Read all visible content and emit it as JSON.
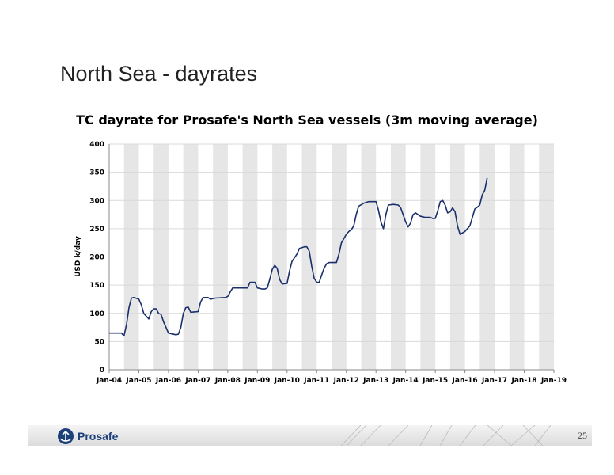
{
  "slide": {
    "title": "North Sea - dayrates",
    "page_number": "25",
    "logo_text": "Prosafe"
  },
  "colors": {
    "line": "#1a2f6b",
    "band": "#e6e6e6",
    "grid": "#d9d9d9",
    "footer_brand": "#1d3f7a"
  },
  "chart_data": {
    "type": "line",
    "title": "TC dayrate for Prosafe's North Sea vessels (3m moving average)",
    "ylabel": "USD k/day",
    "xlabel": "",
    "ylim": [
      0,
      400
    ],
    "yticks": [
      0,
      50,
      100,
      150,
      200,
      250,
      300,
      350,
      400
    ],
    "xlim": [
      "2004-01",
      "2019-01"
    ],
    "xticks": [
      "Jan-04",
      "Jan-05",
      "Jan-06",
      "Jan-07",
      "Jan-08",
      "Jan-09",
      "Jan-10",
      "Jan-11",
      "Jan-12",
      "Jan-13",
      "Jan-14",
      "Jan-15",
      "Jan-16",
      "Jan-17",
      "Jan-18",
      "Jan-19"
    ],
    "grid": "horizontal",
    "shaded_bands": "alternating half-years",
    "series": [
      {
        "points": [
          [
            "2004-01",
            65
          ],
          [
            "2004-06",
            65
          ],
          [
            "2004-07",
            60
          ],
          [
            "2004-08",
            80
          ],
          [
            "2004-09",
            110
          ],
          [
            "2004-10",
            127
          ],
          [
            "2004-11",
            128
          ],
          [
            "2005-01",
            125
          ],
          [
            "2005-02",
            115
          ],
          [
            "2005-03",
            100
          ],
          [
            "2005-05",
            90
          ],
          [
            "2005-06",
            103
          ],
          [
            "2005-07",
            108
          ],
          [
            "2005-08",
            108
          ],
          [
            "2005-09",
            100
          ],
          [
            "2005-10",
            98
          ],
          [
            "2005-11",
            85
          ],
          [
            "2006-01",
            65
          ],
          [
            "2006-04",
            62
          ],
          [
            "2006-05",
            63
          ],
          [
            "2006-06",
            75
          ],
          [
            "2006-07",
            100
          ],
          [
            "2006-08",
            110
          ],
          [
            "2006-09",
            111
          ],
          [
            "2006-10",
            102
          ],
          [
            "2007-01",
            103
          ],
          [
            "2007-02",
            120
          ],
          [
            "2007-03",
            128
          ],
          [
            "2007-05",
            128
          ],
          [
            "2007-06",
            125
          ],
          [
            "2007-08",
            127
          ],
          [
            "2007-12",
            128
          ],
          [
            "2008-01",
            130
          ],
          [
            "2008-02",
            138
          ],
          [
            "2008-03",
            145
          ],
          [
            "2008-06",
            145
          ],
          [
            "2008-09",
            145
          ],
          [
            "2008-10",
            155
          ],
          [
            "2008-12",
            155
          ],
          [
            "2009-01",
            145
          ],
          [
            "2009-03",
            143
          ],
          [
            "2009-04",
            143
          ],
          [
            "2009-05",
            145
          ],
          [
            "2009-06",
            160
          ],
          [
            "2009-07",
            178
          ],
          [
            "2009-08",
            185
          ],
          [
            "2009-09",
            180
          ],
          [
            "2009-10",
            160
          ],
          [
            "2009-11",
            152
          ],
          [
            "2010-01",
            153
          ],
          [
            "2010-02",
            175
          ],
          [
            "2010-03",
            192
          ],
          [
            "2010-05",
            205
          ],
          [
            "2010-06",
            215
          ],
          [
            "2010-08",
            218
          ],
          [
            "2010-09",
            218
          ],
          [
            "2010-10",
            210
          ],
          [
            "2010-11",
            183
          ],
          [
            "2010-12",
            162
          ],
          [
            "2011-01",
            155
          ],
          [
            "2011-02",
            155
          ],
          [
            "2011-03",
            168
          ],
          [
            "2011-04",
            180
          ],
          [
            "2011-05",
            188
          ],
          [
            "2011-06",
            190
          ],
          [
            "2011-09",
            190
          ],
          [
            "2011-10",
            205
          ],
          [
            "2011-11",
            225
          ],
          [
            "2012-01",
            240
          ],
          [
            "2012-02",
            245
          ],
          [
            "2012-03",
            248
          ],
          [
            "2012-04",
            255
          ],
          [
            "2012-05",
            275
          ],
          [
            "2012-06",
            290
          ],
          [
            "2012-08",
            295
          ],
          [
            "2012-10",
            298
          ],
          [
            "2013-01",
            298
          ],
          [
            "2013-02",
            283
          ],
          [
            "2013-03",
            262
          ],
          [
            "2013-04",
            250
          ],
          [
            "2013-05",
            275
          ],
          [
            "2013-06",
            292
          ],
          [
            "2013-08",
            293
          ],
          [
            "2013-10",
            292
          ],
          [
            "2013-11",
            287
          ],
          [
            "2014-01",
            262
          ],
          [
            "2014-02",
            253
          ],
          [
            "2014-03",
            260
          ],
          [
            "2014-04",
            275
          ],
          [
            "2014-05",
            278
          ],
          [
            "2014-07",
            272
          ],
          [
            "2014-09",
            270
          ],
          [
            "2014-11",
            270
          ],
          [
            "2014-12",
            268
          ],
          [
            "2015-01",
            268
          ],
          [
            "2015-02",
            282
          ],
          [
            "2015-03",
            298
          ],
          [
            "2015-04",
            300
          ],
          [
            "2015-05",
            292
          ],
          [
            "2015-06",
            278
          ],
          [
            "2015-07",
            280
          ],
          [
            "2015-08",
            287
          ],
          [
            "2015-09",
            280
          ],
          [
            "2015-10",
            255
          ],
          [
            "2015-11",
            240
          ],
          [
            "2016-01",
            245
          ],
          [
            "2016-02",
            250
          ],
          [
            "2016-03",
            255
          ],
          [
            "2016-04",
            270
          ],
          [
            "2016-05",
            285
          ],
          [
            "2016-06",
            288
          ],
          [
            "2016-07",
            292
          ],
          [
            "2016-08",
            310
          ],
          [
            "2016-09",
            318
          ],
          [
            "2016-10",
            340
          ]
        ]
      }
    ]
  }
}
